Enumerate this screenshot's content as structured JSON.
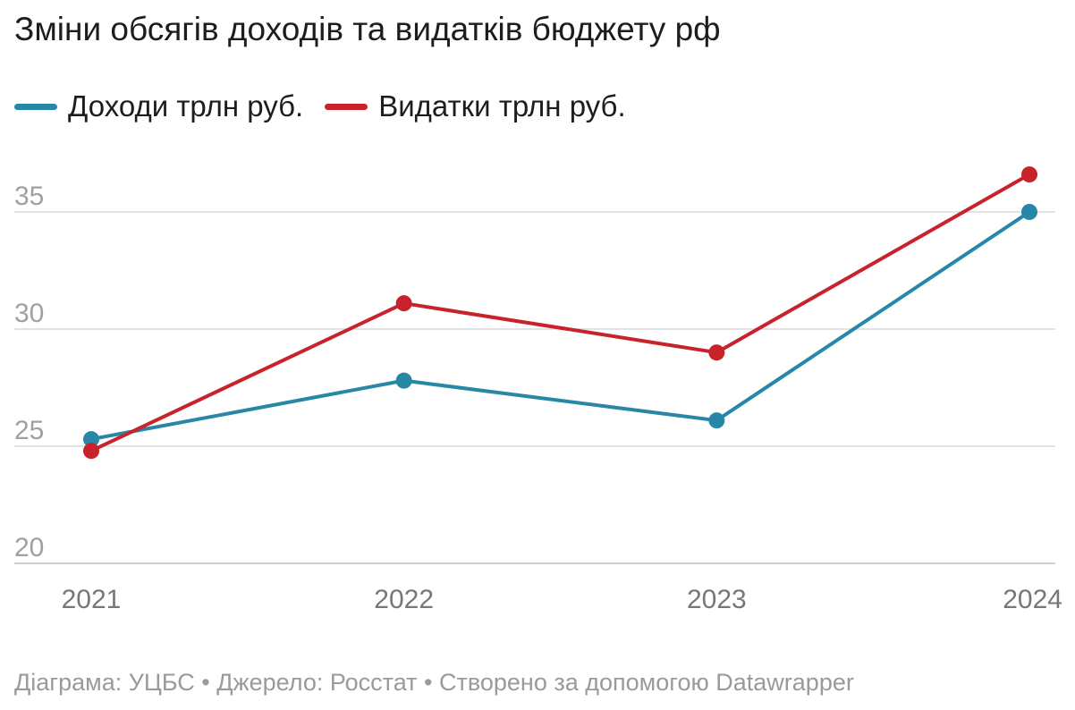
{
  "chart_data": {
    "type": "line",
    "title": "Зміни обсягів доходів та видатків бюджету рф",
    "x": [
      "2021",
      "2022",
      "2023",
      "2024"
    ],
    "series": [
      {
        "name": "Доходи трлн руб.",
        "color": "#2787a6",
        "values": [
          25.3,
          27.8,
          26.1,
          35.0
        ]
      },
      {
        "name": "Видатки трлн руб.",
        "color": "#c8222a",
        "values": [
          24.8,
          31.1,
          29.0,
          36.6
        ]
      }
    ],
    "yticks": [
      20,
      25,
      30,
      35
    ],
    "ylim": [
      20,
      37
    ],
    "grid": true,
    "legend_position": "top-left",
    "xlabel": "",
    "ylabel": ""
  },
  "footer": "Діаграма: УЦБС • Джерело: Росстат • Створено за допомогою Datawrapper"
}
